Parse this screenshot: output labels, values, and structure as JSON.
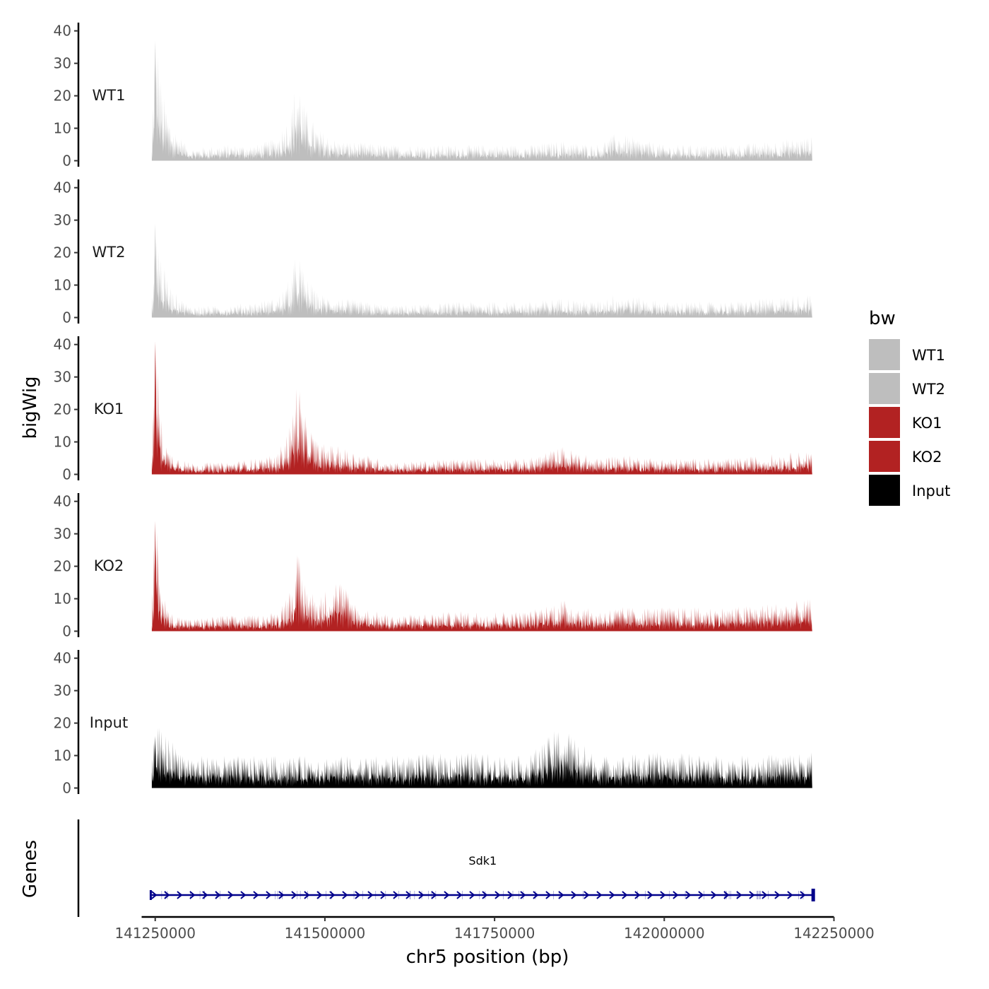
{
  "chart_data": {
    "type": "area",
    "xlabel": "chr5 position (bp)",
    "ylabel": "bigWig",
    "genes_axis_label": "Genes",
    "x_range": [
      141230000,
      142250000
    ],
    "y_range": [
      0,
      42
    ],
    "x_ticks": [
      141250000,
      141500000,
      141750000,
      142000000,
      142250000
    ],
    "x_tick_labels": [
      "141250000",
      "141500000",
      "141750000",
      "142000000",
      "142250000"
    ],
    "y_ticks": [
      0,
      10,
      20,
      30,
      40
    ],
    "y_tick_labels": [
      "0",
      "10",
      "20",
      "30",
      "40"
    ],
    "legend": {
      "title": "bw",
      "position": "right",
      "entries": [
        {
          "label": "WT1",
          "color": "#bebebe"
        },
        {
          "label": "WT2",
          "color": "#bebebe"
        },
        {
          "label": "KO1",
          "color": "#b22222"
        },
        {
          "label": "KO2",
          "color": "#b22222"
        },
        {
          "label": "Input",
          "color": "#000000"
        }
      ]
    },
    "series": [
      {
        "name": "WT1",
        "color": "#bebebe",
        "x": [
          141245000,
          141250000,
          141260000,
          141275000,
          141300000,
          141350000,
          141400000,
          141430000,
          141450000,
          141460000,
          141470000,
          141490000,
          141520000,
          141600000,
          141700000,
          141800000,
          141850000,
          141900000,
          141930000,
          142000000,
          142100000,
          142218000
        ],
        "y": [
          3,
          37,
          18,
          9,
          3,
          4,
          4,
          6,
          12,
          23,
          14,
          8,
          5,
          4,
          4,
          4,
          5,
          4,
          7,
          4,
          4,
          6
        ]
      },
      {
        "name": "WT2",
        "color": "#bebebe",
        "x": [
          141245000,
          141250000,
          141260000,
          141275000,
          141300000,
          141350000,
          141400000,
          141430000,
          141450000,
          141460000,
          141470000,
          141490000,
          141520000,
          141600000,
          141700000,
          141800000,
          141850000,
          141900000,
          141930000,
          142000000,
          142100000,
          142218000
        ],
        "y": [
          3,
          29,
          14,
          7,
          3,
          3,
          4,
          5,
          10,
          18,
          11,
          6,
          5,
          3,
          4,
          4,
          5,
          4,
          6,
          4,
          4,
          6
        ]
      },
      {
        "name": "KO1",
        "color": "#b22222",
        "x": [
          141245000,
          141250000,
          141258000,
          141270000,
          141300000,
          141350000,
          141400000,
          141430000,
          141450000,
          141460000,
          141470000,
          141490000,
          141520000,
          141600000,
          141700000,
          141800000,
          141850000,
          141900000,
          141930000,
          142000000,
          142100000,
          142218000
        ],
        "y": [
          3,
          41,
          15,
          6,
          3,
          3,
          4,
          5,
          13,
          25,
          15,
          8,
          7,
          3,
          4,
          4,
          7,
          4,
          5,
          4,
          4,
          6
        ]
      },
      {
        "name": "KO2",
        "color": "#b22222",
        "x": [
          141245000,
          141250000,
          141258000,
          141270000,
          141300000,
          141350000,
          141400000,
          141430000,
          141450000,
          141460000,
          141470000,
          141490000,
          141520000,
          141550000,
          141600000,
          141700000,
          141800000,
          141850000,
          141900000,
          141930000,
          142000000,
          142100000,
          142218000
        ],
        "y": [
          3,
          34,
          13,
          5,
          3,
          4,
          4,
          5,
          11,
          20,
          13,
          8,
          14,
          6,
          4,
          5,
          5,
          8,
          5,
          6,
          6,
          6,
          8
        ]
      },
      {
        "name": "Input",
        "color": "#000000",
        "x": [
          141245000,
          141250000,
          141300000,
          141400000,
          141500000,
          141600000,
          141700000,
          141800000,
          141850000,
          141900000,
          142000000,
          142100000,
          142218000
        ],
        "y": [
          5,
          16,
          8,
          8,
          8,
          8,
          9,
          8,
          16,
          8,
          9,
          8,
          9
        ]
      }
    ],
    "genes": [
      {
        "name": "Sdk1",
        "start": 141245000,
        "end": 142220000,
        "strand": "+",
        "color": "#00008b"
      }
    ]
  }
}
